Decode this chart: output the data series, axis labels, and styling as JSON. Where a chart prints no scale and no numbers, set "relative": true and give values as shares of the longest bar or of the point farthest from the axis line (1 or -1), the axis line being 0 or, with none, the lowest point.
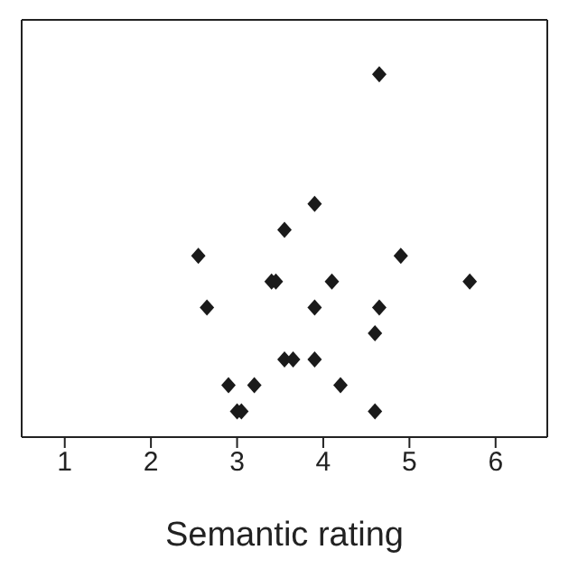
{
  "chart_data": {
    "type": "scatter",
    "xlabel": "Semantic rating",
    "relative": true,
    "tick_labels": "x",
    "marker": "diamond",
    "xlim": [
      0.5,
      6.6
    ],
    "xticks": [
      1,
      2,
      3,
      4,
      5,
      6
    ],
    "x": [
      4.65,
      3.9,
      3.55,
      2.55,
      4.9,
      3.4,
      3.45,
      4.1,
      5.7,
      2.65,
      3.9,
      4.65,
      4.6,
      3.55,
      3.65,
      3.9,
      2.9,
      3.2,
      4.2,
      3.0,
      3.05,
      4.6
    ],
    "series": [
      {
        "color": "#1a1a1a",
        "values": [
          1,
          0.643,
          0.571,
          0.5,
          0.5,
          0.429,
          0.429,
          0.429,
          0.429,
          0.357,
          0.357,
          0.357,
          0.286,
          0.214,
          0.214,
          0.214,
          0.143,
          0.143,
          0.143,
          0.071,
          0.071,
          0.071
        ]
      }
    ]
  }
}
